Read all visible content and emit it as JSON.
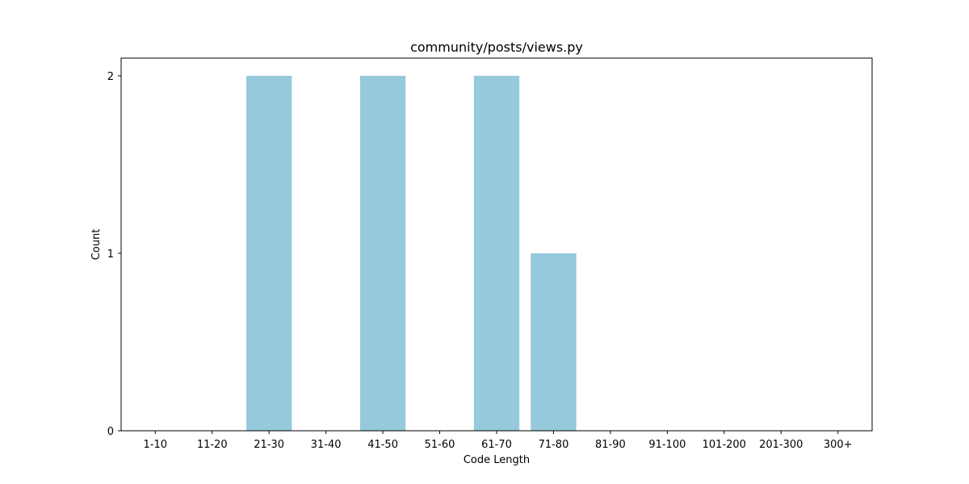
{
  "chart_data": {
    "type": "bar",
    "title": "community/posts/views.py",
    "xlabel": "Code Length",
    "ylabel": "Count",
    "categories": [
      "1-10",
      "11-20",
      "21-30",
      "31-40",
      "41-50",
      "51-60",
      "61-70",
      "71-80",
      "81-90",
      "91-100",
      "101-200",
      "201-300",
      "300+"
    ],
    "values": [
      0,
      0,
      2,
      0,
      2,
      0,
      2,
      1,
      0,
      0,
      0,
      0,
      0
    ],
    "ylim": [
      0,
      2.1
    ],
    "yticks": [
      "0",
      "1",
      "2"
    ],
    "bar_color": "#96c9dc",
    "grid": false,
    "legend": "none"
  }
}
